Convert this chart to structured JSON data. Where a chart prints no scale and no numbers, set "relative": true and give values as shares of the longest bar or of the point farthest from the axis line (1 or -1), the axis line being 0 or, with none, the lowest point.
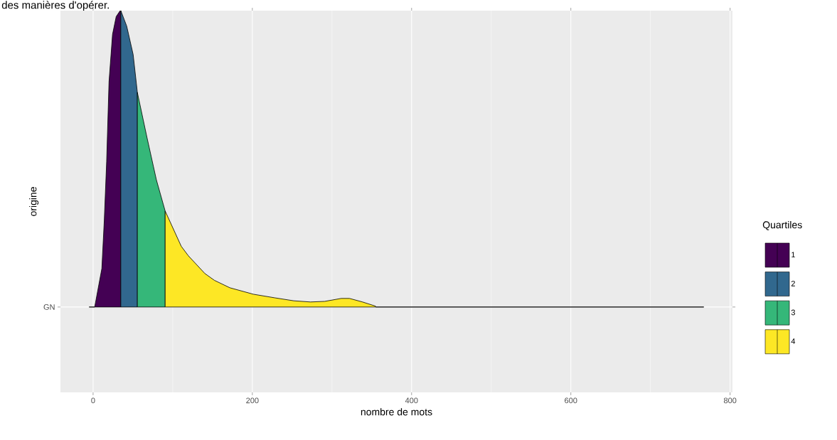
{
  "chart_data": {
    "type": "area",
    "relative": true,
    "xlabel": "nombre de mots",
    "ylabel": "origine",
    "legend_title": "Quartiles",
    "legend": "right",
    "grid": true,
    "xlim": [
      -41,
      803
    ],
    "xticks": [
      0,
      200,
      400,
      600,
      800
    ],
    "annotations": [
      "des manières d'opérer.",
      "GN"
    ],
    "series": [
      {
        "name": "1",
        "color": "#440154",
        "x": [
          -5,
          2,
          11,
          14,
          17,
          20,
          24.4,
          29,
          34,
          34.8
        ],
        "values": [
          0,
          0,
          0.13,
          0.29,
          0.49,
          0.76,
          0.92,
          0.98,
          1.0,
          1.0
        ]
      },
      {
        "name": "2",
        "color": "#31688e",
        "x": [
          34.8,
          42.2,
          50.3,
          55.6
        ],
        "values": [
          1.0,
          0.948,
          0.852,
          0.724
        ]
      },
      {
        "name": "3",
        "color": "#35b779",
        "x": [
          55.6,
          67.6,
          79.5,
          90.5
        ],
        "values": [
          0.724,
          0.573,
          0.429,
          0.324
        ]
      },
      {
        "name": "4",
        "color": "#fde725",
        "x": [
          90.5,
          110.7,
          119.6,
          140.4,
          152.4,
          171.7,
          201.5,
          228.3,
          252,
          273,
          290.8,
          311.6,
          322,
          338.4,
          354.7,
          355,
          767
        ],
        "values": [
          0.324,
          0.205,
          0.173,
          0.113,
          0.09,
          0.065,
          0.043,
          0.031,
          0.021,
          0.017,
          0.019,
          0.029,
          0.029,
          0.017,
          0.003,
          0,
          0
        ]
      }
    ]
  }
}
